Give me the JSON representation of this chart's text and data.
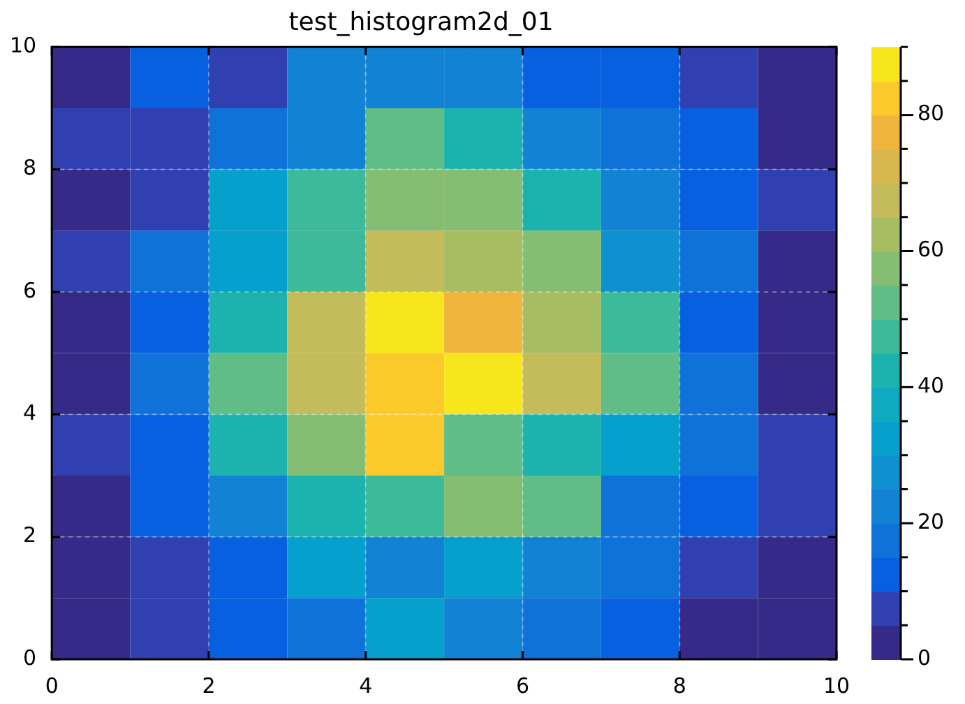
{
  "chart_data": {
    "type": "heatmap",
    "title": "test_histogram2d_01",
    "xlim": [
      0,
      10
    ],
    "xticks": [
      0,
      2,
      4,
      6,
      8,
      10
    ],
    "ylim": [
      0,
      10
    ],
    "yticks": [
      0,
      2,
      4,
      6,
      8,
      10
    ],
    "grid": true,
    "clim": [
      0,
      90
    ],
    "cticks": [
      0,
      {
        "value": 5,
        "label": null
      },
      {
        "value": 10,
        "label": null
      },
      {
        "value": 15,
        "label": null
      },
      20,
      {
        "value": 25,
        "label": null
      },
      {
        "value": 30,
        "label": null
      },
      {
        "value": 35,
        "label": null
      },
      40,
      {
        "value": 45,
        "label": null
      },
      {
        "value": 50,
        "label": null
      },
      {
        "value": 55,
        "label": null
      },
      60,
      {
        "value": 65,
        "label": null
      },
      {
        "value": 70,
        "label": null
      },
      {
        "value": 75,
        "label": null
      },
      80,
      {
        "value": 85,
        "label": null
      },
      {
        "value": 90,
        "label": null
      }
    ],
    "cells": [
      [
        2,
        12,
        9,
        22,
        22,
        23,
        12,
        13,
        7,
        2
      ],
      [
        7,
        6,
        18,
        24,
        51,
        43,
        22,
        17,
        13,
        4
      ],
      [
        4,
        9,
        32,
        48,
        56,
        55,
        41,
        20,
        12,
        8
      ],
      [
        8,
        17,
        32,
        46,
        67,
        60,
        57,
        27,
        16,
        4
      ],
      [
        4,
        11,
        41,
        68,
        88,
        76,
        64,
        46,
        14,
        3
      ],
      [
        1,
        18,
        50,
        67,
        84,
        86,
        66,
        50,
        17,
        4
      ],
      [
        5,
        13,
        42,
        57,
        81,
        53,
        42,
        33,
        16,
        9
      ],
      [
        4,
        14,
        22,
        40,
        48,
        58,
        53,
        17,
        12,
        5
      ],
      [
        2,
        9,
        11,
        32,
        22,
        33,
        22,
        18,
        7,
        4
      ],
      [
        4,
        5,
        13,
        19,
        31,
        22,
        18,
        12,
        3,
        2
      ]
    ]
  }
}
